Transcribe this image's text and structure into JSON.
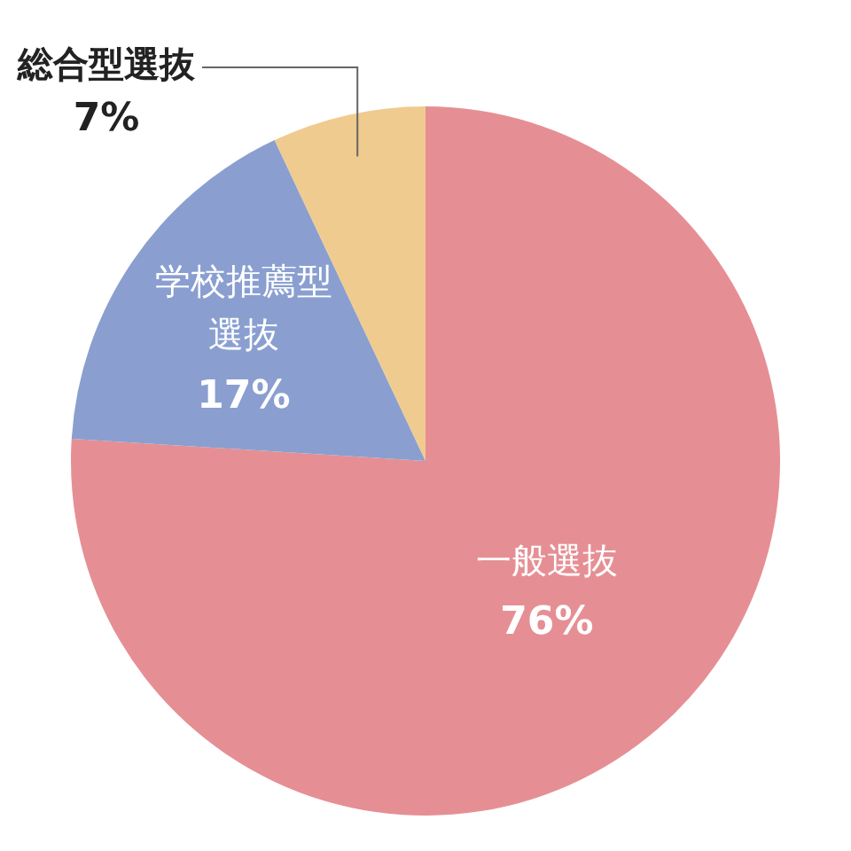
{
  "chart_data": {
    "type": "pie",
    "categories": [
      "一般選抜",
      "学校推薦型選抜",
      "総合型選抜"
    ],
    "values": [
      76,
      17,
      7
    ],
    "colors": [
      "#e58f94",
      "#8a9fd0",
      "#efcb8f"
    ],
    "value_labels": [
      "76%",
      "17%",
      "7%"
    ],
    "legend": false
  }
}
